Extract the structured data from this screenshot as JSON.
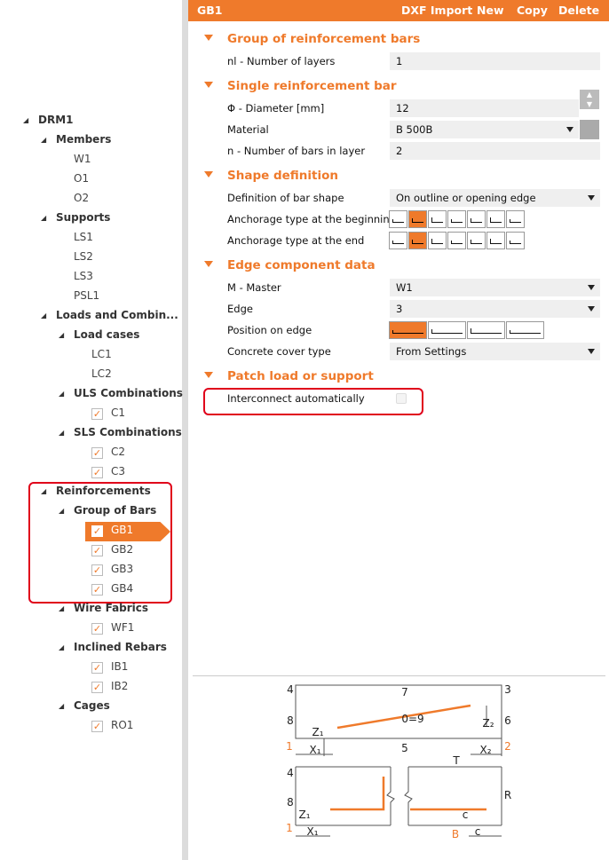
{
  "tree": {
    "label": "DRM1",
    "children": [
      {
        "label": "Members",
        "children": [
          {
            "label": "W1"
          },
          {
            "label": "O1"
          },
          {
            "label": "O2"
          }
        ]
      },
      {
        "label": "Supports",
        "children": [
          {
            "label": "LS1"
          },
          {
            "label": "LS2"
          },
          {
            "label": "LS3"
          },
          {
            "label": "PSL1"
          }
        ]
      },
      {
        "label": "Loads and Combin...",
        "children": [
          {
            "label": "Load cases",
            "children": [
              {
                "label": "LC1"
              },
              {
                "label": "LC2"
              }
            ]
          },
          {
            "label": "ULS Combinations",
            "children": [
              {
                "label": "C1",
                "checked": true
              }
            ]
          },
          {
            "label": "SLS Combinations",
            "children": [
              {
                "label": "C2",
                "checked": true
              },
              {
                "label": "C3",
                "checked": true
              }
            ]
          }
        ]
      },
      {
        "label": "Reinforcements",
        "children": [
          {
            "label": "Group of Bars",
            "children": [
              {
                "label": "GB1",
                "checked": true,
                "selected": true
              },
              {
                "label": "GB2",
                "checked": true
              },
              {
                "label": "GB3",
                "checked": true
              },
              {
                "label": "GB4",
                "checked": true
              }
            ]
          },
          {
            "label": "Wire Fabrics",
            "children": [
              {
                "label": "WF1",
                "checked": true
              }
            ]
          },
          {
            "label": "Inclined Rebars",
            "children": [
              {
                "label": "IB1",
                "checked": true
              },
              {
                "label": "IB2",
                "checked": true
              }
            ]
          },
          {
            "label": "Cages",
            "children": [
              {
                "label": "RO1",
                "checked": true
              }
            ]
          }
        ]
      }
    ]
  },
  "header": {
    "title": "GB1",
    "actions": [
      "DXF Import",
      "New",
      "Copy",
      "Delete"
    ]
  },
  "sections": [
    {
      "title": "Group of reinforcement bars",
      "rows": [
        {
          "label": "nl - Number of layers",
          "value": "1",
          "control": "input"
        }
      ]
    },
    {
      "title": "Single reinforcement bar",
      "rows": [
        {
          "label": "Φ - Diameter [mm]",
          "value": "12",
          "control": "spinner"
        },
        {
          "label": "Material",
          "value": "B 500B",
          "control": "dropdown-edit"
        },
        {
          "label": "n - Number of bars in layer",
          "value": "2",
          "control": "input"
        }
      ]
    },
    {
      "title": "Shape definition",
      "rows": [
        {
          "label": "Definition of bar shape",
          "value": "On outline or opening edge",
          "control": "dropdown"
        },
        {
          "label": "Anchorage type at the beginning",
          "control": "anchorage"
        },
        {
          "label": "Anchorage type at the end",
          "control": "anchorage"
        }
      ]
    },
    {
      "title": "Edge component data",
      "rows": [
        {
          "label": "M - Master",
          "value": "W1",
          "control": "dropdown"
        },
        {
          "label": "Edge",
          "value": "3",
          "control": "dropdown"
        },
        {
          "label": "Position on edge",
          "control": "position"
        },
        {
          "label": "Concrete cover type",
          "value": "From Settings",
          "control": "dropdown"
        }
      ]
    },
    {
      "title": "Patch load or support",
      "rows": [
        {
          "label": "Interconnect automatically",
          "control": "checkbox"
        }
      ]
    }
  ],
  "diagram": {
    "labels": [
      {
        "text": "4"
      },
      {
        "text": "7"
      },
      {
        "text": "3"
      },
      {
        "text": "8"
      },
      {
        "text": "0=9"
      },
      {
        "text": "6"
      },
      {
        "text": "Z₁"
      },
      {
        "text": "Z₂"
      },
      {
        "text": "1",
        "color": "#ef7a2b"
      },
      {
        "text": "X₁"
      },
      {
        "text": "5"
      },
      {
        "text": "X₂"
      },
      {
        "text": "2",
        "color": "#ef7a2b"
      },
      {
        "text": "T"
      },
      {
        "text": "4"
      },
      {
        "text": "8"
      },
      {
        "text": "R"
      },
      {
        "text": "Z₁"
      },
      {
        "text": "c"
      },
      {
        "text": "1",
        "color": "#ef7a2b"
      },
      {
        "text": "X₁"
      },
      {
        "text": "B",
        "color": "#ef7a2b"
      },
      {
        "text": "c"
      }
    ]
  }
}
